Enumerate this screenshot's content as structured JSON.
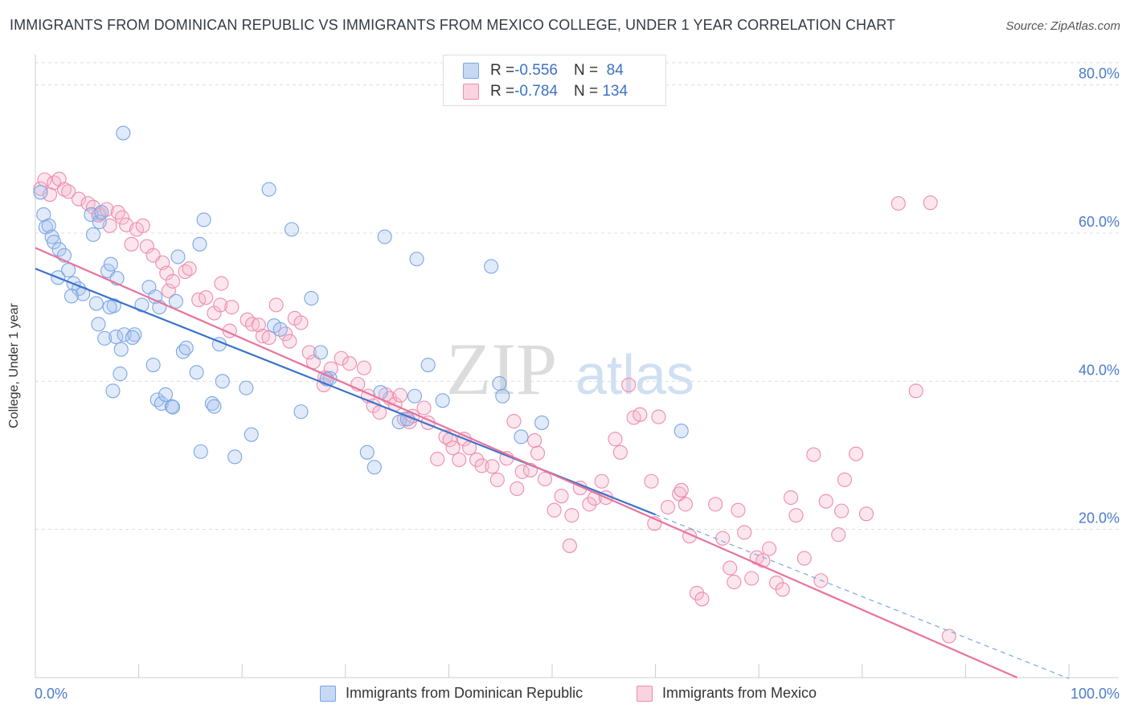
{
  "title": "IMMIGRANTS FROM DOMINICAN REPUBLIC VS IMMIGRANTS FROM MEXICO COLLEGE, UNDER 1 YEAR CORRELATION CHART",
  "source": "Source: ZipAtlas.com",
  "watermark": {
    "zip": "ZIP",
    "atlas": "atlas"
  },
  "legend": {
    "rows": [
      {
        "r_label": "R = ",
        "r_value": "-0.556",
        "n_label": "N = ",
        "n_value": " 84",
        "color": "#a8c4ee"
      },
      {
        "r_label": "R = ",
        "r_value": "-0.784",
        "n_label": "N = ",
        "n_value": "134",
        "color": "#f4b8cb"
      }
    ]
  },
  "chart_data": {
    "type": "scatter",
    "title": "IMMIGRANTS FROM DOMINICAN REPUBLIC VS IMMIGRANTS FROM MEXICO COLLEGE, UNDER 1 YEAR CORRELATION CHART",
    "xlabel": "",
    "ylabel": "College, Under 1 year",
    "xlim": [
      0,
      100
    ],
    "ylim": [
      0,
      83
    ],
    "x_tick_labels": [
      "0.0%",
      "100.0%"
    ],
    "y_ticks": [
      20,
      40,
      60,
      80
    ],
    "y_tick_labels": [
      "20.0%",
      "40.0%",
      "60.0%",
      "80.0%"
    ],
    "grid": "horizontal dashed",
    "legend_position": "top-center",
    "series": [
      {
        "name": "Immigrants from Dominican Republic",
        "color": "#7aa6e6",
        "trend": {
          "x": [
            0,
            60
          ],
          "y": [
            55.2,
            22.0
          ],
          "dashed_extension_to_x": 100
        },
        "points": [
          [
            0.5,
            65.5
          ],
          [
            0.8,
            62.5
          ],
          [
            1.0,
            60.8
          ],
          [
            1.3,
            61.0
          ],
          [
            1.6,
            59.5
          ],
          [
            1.8,
            58.8
          ],
          [
            2.3,
            57.8
          ],
          [
            2.8,
            57.0
          ],
          [
            2.2,
            54.0
          ],
          [
            3.2,
            55.0
          ],
          [
            3.7,
            53.2
          ],
          [
            4.2,
            52.5
          ],
          [
            4.6,
            51.8
          ],
          [
            3.5,
            51.5
          ],
          [
            5.4,
            62.5
          ],
          [
            5.6,
            59.8
          ],
          [
            5.9,
            50.5
          ],
          [
            6.2,
            61.5
          ],
          [
            6.1,
            47.7
          ],
          [
            6.4,
            62.8
          ],
          [
            7.0,
            54.9
          ],
          [
            7.3,
            55.8
          ],
          [
            7.9,
            53.9
          ],
          [
            6.7,
            45.8
          ],
          [
            7.6,
            50.2
          ],
          [
            7.2,
            50.0
          ],
          [
            7.8,
            46.0
          ],
          [
            8.2,
            41.0
          ],
          [
            8.3,
            44.3
          ],
          [
            7.5,
            38.7
          ],
          [
            8.5,
            73.5
          ],
          [
            8.6,
            46.3
          ],
          [
            9.6,
            46.3
          ],
          [
            9.4,
            45.9
          ],
          [
            10.3,
            50.3
          ],
          [
            11.0,
            52.7
          ],
          [
            11.4,
            42.2
          ],
          [
            11.6,
            51.4
          ],
          [
            12.0,
            50.0
          ],
          [
            11.8,
            37.5
          ],
          [
            12.2,
            37.0
          ],
          [
            12.6,
            38.2
          ],
          [
            13.2,
            36.6
          ],
          [
            13.3,
            36.5
          ],
          [
            13.6,
            50.8
          ],
          [
            13.8,
            56.8
          ],
          [
            14.3,
            44.0
          ],
          [
            14.6,
            44.5
          ],
          [
            15.6,
            41.2
          ],
          [
            15.9,
            58.5
          ],
          [
            16.3,
            61.8
          ],
          [
            17.1,
            37.0
          ],
          [
            17.3,
            36.6
          ],
          [
            18.1,
            40.0
          ],
          [
            16.0,
            30.5
          ],
          [
            17.8,
            45.0
          ],
          [
            19.3,
            29.8
          ],
          [
            20.4,
            39.1
          ],
          [
            20.9,
            32.8
          ],
          [
            23.1,
            47.5
          ],
          [
            22.6,
            65.9
          ],
          [
            23.7,
            47.0
          ],
          [
            24.8,
            60.5
          ],
          [
            25.7,
            35.9
          ],
          [
            26.7,
            51.2
          ],
          [
            27.6,
            43.9
          ],
          [
            28.5,
            40.4
          ],
          [
            28.2,
            40.3
          ],
          [
            32.1,
            30.4
          ],
          [
            33.4,
            38.5
          ],
          [
            33.8,
            59.5
          ],
          [
            32.8,
            28.4
          ],
          [
            35.2,
            34.5
          ],
          [
            36.0,
            34.9
          ],
          [
            36.7,
            38.0
          ],
          [
            36.9,
            56.5
          ],
          [
            38.0,
            42.2
          ],
          [
            39.4,
            37.4
          ],
          [
            44.1,
            55.5
          ],
          [
            44.9,
            39.7
          ],
          [
            45.2,
            38.0
          ],
          [
            47.0,
            32.5
          ],
          [
            49.0,
            34.4
          ],
          [
            62.5,
            33.3
          ]
        ]
      },
      {
        "name": "Immigrants from Mexico",
        "color": "#ee8cad",
        "trend": {
          "x": [
            0,
            95
          ],
          "y": [
            58.0,
            0.0
          ]
        },
        "points": [
          [
            0.5,
            66.0
          ],
          [
            0.9,
            67.2
          ],
          [
            1.4,
            65.2
          ],
          [
            1.8,
            66.8
          ],
          [
            2.3,
            67.3
          ],
          [
            2.8,
            65.9
          ],
          [
            3.2,
            65.6
          ],
          [
            4.2,
            64.6
          ],
          [
            5.1,
            64.0
          ],
          [
            5.6,
            63.5
          ],
          [
            6.2,
            62.6
          ],
          [
            6.1,
            62.4
          ],
          [
            6.9,
            63.2
          ],
          [
            7.2,
            61.0
          ],
          [
            8.0,
            62.8
          ],
          [
            8.4,
            62.1
          ],
          [
            8.8,
            61.1
          ],
          [
            9.3,
            58.5
          ],
          [
            9.8,
            60.5
          ],
          [
            10.4,
            61.0
          ],
          [
            10.8,
            58.2
          ],
          [
            11.4,
            57.0
          ],
          [
            12.3,
            56.0
          ],
          [
            12.7,
            54.6
          ],
          [
            12.9,
            52.2
          ],
          [
            13.3,
            53.5
          ],
          [
            14.5,
            54.8
          ],
          [
            14.9,
            55.2
          ],
          [
            15.8,
            51.0
          ],
          [
            16.5,
            51.3
          ],
          [
            17.3,
            49.2
          ],
          [
            17.9,
            50.3
          ],
          [
            18.0,
            53.2
          ],
          [
            18.8,
            46.8
          ],
          [
            19.0,
            50.0
          ],
          [
            20.5,
            48.3
          ],
          [
            21.0,
            47.7
          ],
          [
            21.6,
            47.6
          ],
          [
            22.0,
            46.1
          ],
          [
            22.6,
            45.9
          ],
          [
            23.3,
            50.3
          ],
          [
            24.2,
            46.4
          ],
          [
            24.6,
            45.4
          ],
          [
            25.1,
            48.5
          ],
          [
            25.7,
            47.9
          ],
          [
            26.5,
            43.9
          ],
          [
            26.9,
            42.6
          ],
          [
            28.0,
            40.5
          ],
          [
            27.9,
            39.5
          ],
          [
            28.6,
            41.7
          ],
          [
            29.6,
            43.1
          ],
          [
            30.4,
            42.4
          ],
          [
            31.2,
            39.6
          ],
          [
            31.8,
            41.8
          ],
          [
            32.2,
            38.0
          ],
          [
            32.7,
            36.7
          ],
          [
            33.3,
            35.8
          ],
          [
            33.9,
            38.2
          ],
          [
            34.3,
            37.7
          ],
          [
            34.8,
            36.9
          ],
          [
            35.3,
            38.1
          ],
          [
            35.7,
            34.9
          ],
          [
            36.2,
            34.5
          ],
          [
            36.5,
            35.3
          ],
          [
            37.6,
            36.4
          ],
          [
            38.0,
            34.4
          ],
          [
            38.9,
            29.5
          ],
          [
            39.7,
            32.5
          ],
          [
            40.1,
            32.1
          ],
          [
            40.4,
            31.0
          ],
          [
            41.0,
            29.4
          ],
          [
            41.5,
            32.2
          ],
          [
            42.0,
            31.0
          ],
          [
            42.7,
            29.4
          ],
          [
            43.2,
            28.6
          ],
          [
            44.2,
            28.5
          ],
          [
            44.7,
            26.7
          ],
          [
            45.6,
            29.6
          ],
          [
            46.3,
            34.6
          ],
          [
            46.6,
            25.5
          ],
          [
            47.1,
            27.8
          ],
          [
            47.9,
            28.0
          ],
          [
            48.3,
            32.0
          ],
          [
            48.6,
            30.3
          ],
          [
            49.3,
            26.8
          ],
          [
            50.2,
            22.6
          ],
          [
            50.9,
            24.5
          ],
          [
            51.7,
            17.8
          ],
          [
            51.9,
            21.9
          ],
          [
            52.7,
            25.6
          ],
          [
            53.6,
            23.4
          ],
          [
            54.1,
            24.2
          ],
          [
            54.8,
            26.5
          ],
          [
            55.2,
            24.3
          ],
          [
            56.1,
            32.2
          ],
          [
            56.6,
            30.4
          ],
          [
            57.4,
            39.5
          ],
          [
            57.9,
            35.1
          ],
          [
            58.5,
            35.5
          ],
          [
            59.6,
            26.5
          ],
          [
            59.9,
            20.8
          ],
          [
            60.3,
            35.2
          ],
          [
            61.2,
            23.0
          ],
          [
            62.3,
            24.8
          ],
          [
            62.5,
            25.3
          ],
          [
            62.9,
            23.4
          ],
          [
            63.3,
            19.1
          ],
          [
            64.0,
            11.4
          ],
          [
            64.5,
            10.6
          ],
          [
            65.8,
            23.4
          ],
          [
            66.5,
            18.8
          ],
          [
            67.2,
            14.8
          ],
          [
            67.6,
            12.9
          ],
          [
            68.0,
            22.6
          ],
          [
            68.6,
            19.6
          ],
          [
            69.3,
            13.4
          ],
          [
            69.8,
            16.2
          ],
          [
            70.4,
            15.8
          ],
          [
            71.0,
            17.4
          ],
          [
            71.7,
            12.8
          ],
          [
            72.3,
            11.9
          ],
          [
            73.1,
            24.3
          ],
          [
            73.6,
            21.9
          ],
          [
            74.4,
            16.1
          ],
          [
            75.3,
            30.1
          ],
          [
            76.0,
            13.1
          ],
          [
            76.5,
            23.8
          ],
          [
            77.7,
            19.3
          ],
          [
            78.0,
            22.5
          ],
          [
            78.3,
            26.7
          ],
          [
            79.4,
            30.2
          ],
          [
            80.4,
            22.1
          ],
          [
            83.5,
            64.0
          ],
          [
            85.2,
            38.7
          ],
          [
            86.6,
            64.1
          ],
          [
            88.4,
            5.6
          ]
        ]
      }
    ]
  },
  "bottom_legend": [
    {
      "label": "Immigrants from Dominican Republic",
      "color": "#a8c4ee"
    },
    {
      "label": "Immigrants from Mexico",
      "color": "#f4b8cb"
    }
  ]
}
